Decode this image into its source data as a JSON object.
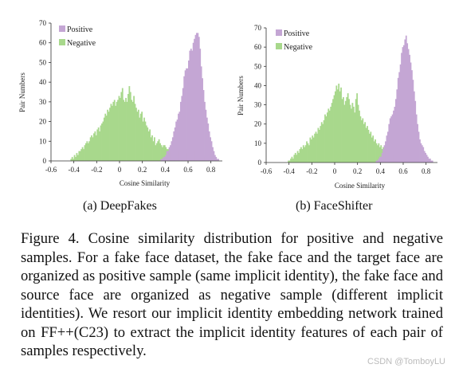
{
  "figure": {
    "sub_captions": [
      "(a) DeepFakes",
      "(b) FaceShifter"
    ],
    "caption": "Figure 4.  Cosine similarity distribution for positive and negative samples. For a fake face dataset, the fake face and the target face are organized as positive sample (same implicit identity), the fake face and source face are organized as negative sample (different implicit identities). We resort our implicit identity embedding network trained on FF++(C23) to extract the implicit identity features of each pair of samples respectively."
  },
  "watermark": "CSDN @TomboyLU",
  "colors": {
    "positive": "#c4a6d4",
    "negative": "#a8d88c",
    "axis": "#333333"
  },
  "chart_data": [
    {
      "type": "histogram",
      "title": "",
      "xlabel": "Cosine Similarity",
      "ylabel": "Pair Numbers",
      "xlim": [
        -0.6,
        0.9
      ],
      "ylim": [
        0,
        70
      ],
      "xticks": [
        "-0.6",
        "-0.4",
        "-0.2",
        "0",
        "0.2",
        "0.4",
        "0.6",
        "0.8"
      ],
      "yticks": [
        "0",
        "10",
        "20",
        "30",
        "40",
        "50",
        "60",
        "70"
      ],
      "legend": {
        "position": "top-left"
      },
      "bin_width": 0.01,
      "series": [
        {
          "name": "Positive",
          "bin_start": 0.35,
          "values": [
            0,
            1,
            1,
            2,
            2,
            3,
            5,
            5,
            7,
            8,
            10,
            12,
            15,
            17,
            20,
            21,
            24,
            25,
            30,
            33,
            37,
            43,
            46,
            47,
            47,
            51,
            56,
            57,
            56,
            60,
            62,
            64,
            65,
            65,
            63,
            57,
            48,
            42,
            36,
            30,
            26,
            22,
            19,
            15,
            12,
            10,
            7,
            5,
            3,
            2,
            1,
            1,
            0
          ]
        },
        {
          "name": "Negative",
          "bin_start": -0.43,
          "values": [
            1,
            2,
            1,
            3,
            2,
            4,
            3,
            5,
            5,
            6,
            7,
            6,
            8,
            9,
            10,
            9,
            10,
            12,
            13,
            12,
            14,
            15,
            13,
            16,
            17,
            15,
            18,
            19,
            20,
            22,
            24,
            23,
            26,
            25,
            27,
            29,
            28,
            30,
            31,
            28,
            30,
            31,
            33,
            32,
            35,
            37,
            31,
            30,
            32,
            30,
            34,
            38,
            35,
            31,
            30,
            33,
            29,
            27,
            25,
            26,
            22,
            24,
            25,
            20,
            22,
            20,
            18,
            17,
            15,
            16,
            12,
            13,
            10,
            12,
            8,
            9,
            10,
            11,
            9,
            8,
            7,
            8,
            8,
            7,
            6,
            6,
            5,
            6,
            5,
            6,
            5,
            7,
            6,
            5,
            6,
            4,
            5,
            4,
            5,
            4,
            3,
            4,
            6,
            7,
            9,
            8,
            6,
            5,
            7,
            5,
            4,
            3,
            5,
            4,
            3,
            2,
            2,
            3,
            1,
            2,
            1,
            0
          ]
        }
      ]
    },
    {
      "type": "histogram",
      "title": "",
      "xlabel": "Cosine Similarity",
      "ylabel": "Pair Numbers",
      "xlim": [
        -0.6,
        0.9
      ],
      "ylim": [
        0,
        70
      ],
      "xticks": [
        "-0.6",
        "-0.4",
        "-0.2",
        "0",
        "0.2",
        "0.4",
        "0.6",
        "0.8"
      ],
      "yticks": [
        "0",
        "10",
        "20",
        "30",
        "40",
        "50",
        "60",
        "70"
      ],
      "legend": {
        "position": "top-left"
      },
      "bin_width": 0.01,
      "series": [
        {
          "name": "Positive",
          "bin_start": 0.36,
          "values": [
            1,
            1,
            2,
            3,
            3,
            5,
            7,
            9,
            11,
            14,
            16,
            20,
            23,
            24,
            25,
            27,
            29,
            33,
            38,
            44,
            47,
            51,
            57,
            60,
            61,
            64,
            66,
            62,
            59,
            56,
            52,
            48,
            43,
            37,
            32,
            25,
            20,
            16,
            12,
            10,
            9,
            8,
            6,
            5,
            4,
            3,
            2,
            2,
            1,
            1,
            0
          ]
        },
        {
          "name": "Negative",
          "bin_start": -0.41,
          "values": [
            1,
            1,
            2,
            3,
            2,
            4,
            5,
            4,
            6,
            5,
            7,
            8,
            7,
            9,
            8,
            9,
            11,
            10,
            9,
            13,
            12,
            14,
            13,
            15,
            16,
            15,
            18,
            17,
            19,
            21,
            20,
            22,
            25,
            24,
            26,
            28,
            27,
            29,
            31,
            33,
            35,
            37,
            40,
            38,
            41,
            37,
            39,
            33,
            34,
            30,
            32,
            34,
            36,
            33,
            30,
            28,
            31,
            29,
            26,
            33,
            36,
            30,
            27,
            24,
            22,
            23,
            20,
            21,
            18,
            19,
            17,
            15,
            16,
            13,
            14,
            11,
            12,
            10,
            9,
            10,
            8,
            9,
            7,
            8,
            6,
            7,
            5,
            6,
            5,
            4,
            5,
            6,
            4,
            5,
            4,
            3,
            4,
            5,
            6,
            5,
            4,
            3,
            3,
            5,
            7,
            4,
            3,
            2,
            2,
            1,
            1,
            1,
            0
          ]
        }
      ]
    }
  ]
}
